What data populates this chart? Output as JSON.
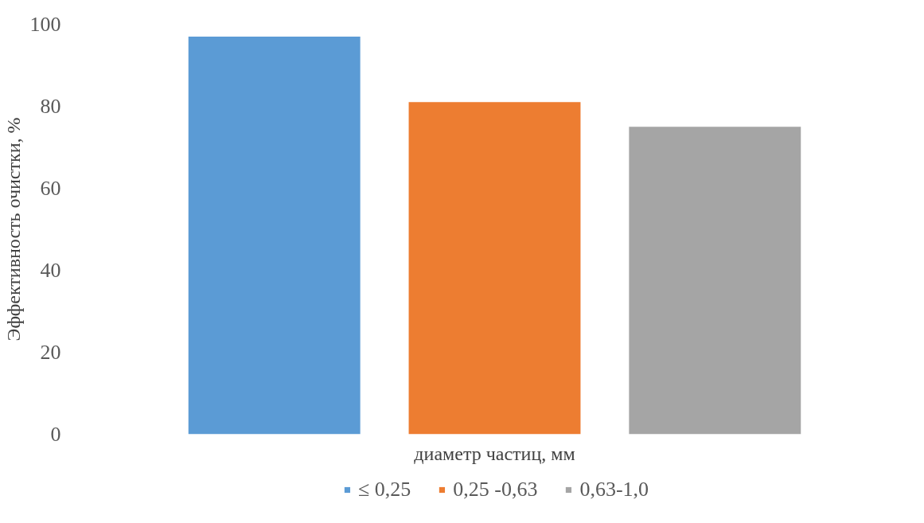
{
  "chart_data": {
    "type": "bar",
    "xlabel": "диаметр частиц, мм",
    "ylabel": "Эффективность очистки, %",
    "categories": [
      null
    ],
    "series": [
      {
        "name": "≤ 0,25",
        "color": "#5b9bd5",
        "values": [
          97
        ]
      },
      {
        "name": "0,25 -0,63",
        "color": "#ed7d31",
        "values": [
          81
        ]
      },
      {
        "name": "0,63-1,0",
        "color": "#a5a5a5",
        "values": [
          75
        ]
      }
    ],
    "ylim": [
      0,
      100
    ],
    "yticks": [
      0,
      20,
      40,
      60,
      80,
      100
    ],
    "grid": false,
    "legend": "bottom"
  }
}
